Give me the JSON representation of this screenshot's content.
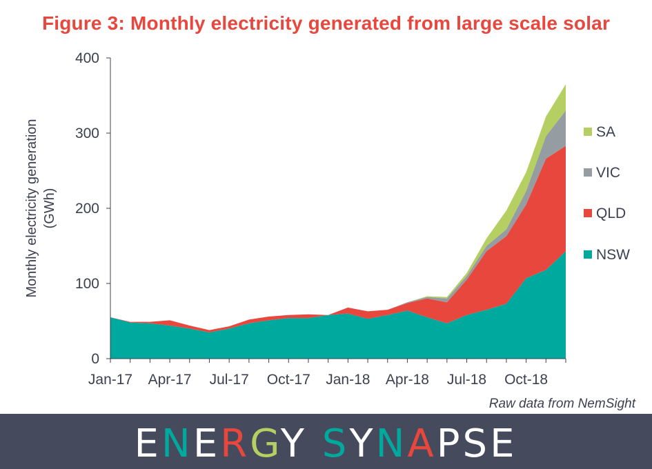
{
  "title": "Figure 3: Monthly electricity generated from large scale solar",
  "source": "Raw data from NemSight",
  "brand": {
    "name": "ENERGY SYNAPSE",
    "letters": [
      {
        "ch": "E",
        "color": "#ffffff"
      },
      {
        "ch": "N",
        "color": "#00a99d"
      },
      {
        "ch": "E",
        "color": "#ffffff"
      },
      {
        "ch": "R",
        "color": "#e8473d"
      },
      {
        "ch": "G",
        "color": "#b5cf62"
      },
      {
        "ch": "Y",
        "color": "#ffffff"
      },
      {
        "ch": " ",
        "color": "#ffffff"
      },
      {
        "ch": "S",
        "color": "#00a99d"
      },
      {
        "ch": "Y",
        "color": "#ffffff"
      },
      {
        "ch": "N",
        "color": "#00a99d"
      },
      {
        "ch": "A",
        "color": "#e8473d"
      },
      {
        "ch": "P",
        "color": "#ffffff"
      },
      {
        "ch": "S",
        "color": "#ffffff"
      },
      {
        "ch": "E",
        "color": "#ffffff"
      }
    ]
  },
  "chart_data": {
    "type": "area",
    "stacked": true,
    "title": "Figure 3: Monthly electricity generated from large scale solar",
    "ylabel": "Monthly electricity generation (GWh)",
    "ylabel_lines": [
      "Monthly electricity generation",
      "(GWh)"
    ],
    "xlabel": "",
    "ylim": [
      0,
      400
    ],
    "yticks": [
      0,
      100,
      200,
      300,
      400
    ],
    "grid": false,
    "legend_position": "right",
    "categories": [
      "Jan-17",
      "Feb-17",
      "Mar-17",
      "Apr-17",
      "May-17",
      "Jun-17",
      "Jul-17",
      "Aug-17",
      "Sep-17",
      "Oct-17",
      "Nov-17",
      "Dec-17",
      "Jan-18",
      "Feb-18",
      "Mar-18",
      "Apr-18",
      "May-18",
      "Jun-18",
      "Jul-18",
      "Aug-18",
      "Sep-18",
      "Oct-18",
      "Nov-18",
      "Dec-18"
    ],
    "xtick_labels": [
      "Jan-17",
      "Apr-17",
      "Jul-17",
      "Oct-17",
      "Jan-18",
      "Apr-18",
      "Jul-18",
      "Oct-18"
    ],
    "xtick_indices": [
      0,
      3,
      6,
      9,
      12,
      15,
      18,
      21
    ],
    "series": [
      {
        "name": "NSW",
        "color": "#00a99d",
        "values": [
          55,
          48,
          47,
          44,
          40,
          35,
          40,
          47,
          51,
          54,
          54,
          58,
          60,
          53,
          58,
          64,
          55,
          47,
          58,
          65,
          73,
          107,
          118,
          143
        ]
      },
      {
        "name": "QLD",
        "color": "#e8473d",
        "values": [
          0,
          1,
          2,
          7,
          4,
          3,
          3,
          5,
          5,
          4,
          5,
          0,
          8,
          10,
          7,
          10,
          25,
          28,
          47,
          78,
          90,
          98,
          148,
          140
        ]
      },
      {
        "name": "VIC",
        "color": "#959ca2",
        "values": [
          0,
          0,
          0,
          0,
          0,
          0,
          0,
          0,
          0,
          0,
          0,
          0,
          0,
          0,
          0,
          1,
          2,
          5,
          5,
          7,
          9,
          18,
          30,
          47
        ]
      },
      {
        "name": "SA",
        "color": "#b5cf62",
        "values": [
          0,
          0,
          0,
          0,
          0,
          0,
          0,
          0,
          0,
          0,
          0,
          0,
          0,
          0,
          0,
          0,
          1,
          2,
          4,
          10,
          25,
          25,
          26,
          35
        ]
      }
    ],
    "legend_order": [
      "SA",
      "VIC",
      "QLD",
      "NSW"
    ]
  }
}
